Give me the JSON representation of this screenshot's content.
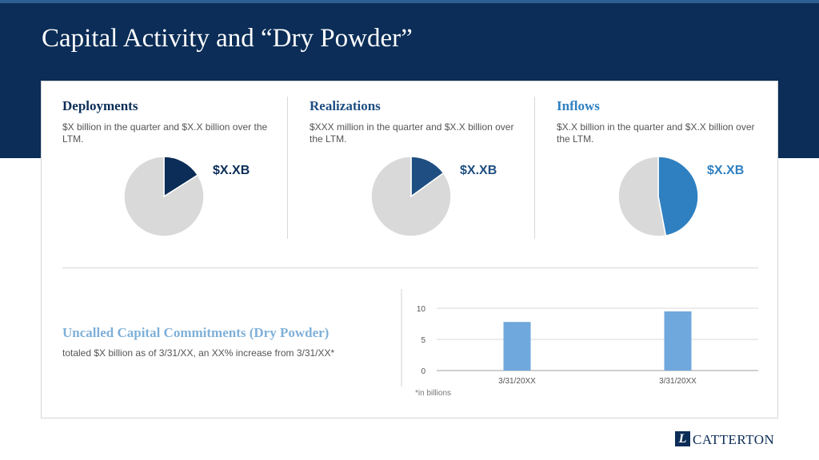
{
  "slide": {
    "title": "Capital Activity and “Dry Powder”",
    "colors": {
      "header_bg": "#0b2d57",
      "light_blue_title": "#7fb0d8",
      "pie_remainder": "#d9d9d9"
    }
  },
  "panels": [
    {
      "heading": "Deployments",
      "text": "$X billion in the quarter and $X.X billion over the LTM.",
      "value": "$X.XB",
      "color": "#0b2d57"
    },
    {
      "heading": "Realizations",
      "text": "$XXX million in the quarter and $X.X billion over the LTM.",
      "value": "$X.XB",
      "color": "#1f4e82"
    },
    {
      "heading": "Inflows",
      "text": "$X.X billion in the quarter and $X.X billion over the LTM.",
      "value": "$X.XB",
      "color": "#2f80c1"
    }
  ],
  "dry_powder": {
    "title": "Uncalled Capital Commitments (Dry Powder)",
    "text": "totaled $X billion as of 3/31/XX, an XX% increase from 3/31/XX*",
    "note": "*in billions"
  },
  "logo": {
    "mark": "L",
    "text": "CATTERTON"
  },
  "chart_data": [
    {
      "type": "pie",
      "slices": [
        {
          "value": 16,
          "color": "#0b2d57"
        },
        {
          "value": 84,
          "color": "#d9d9d9"
        }
      ]
    },
    {
      "type": "pie",
      "slices": [
        {
          "value": 15,
          "color": "#1f4e82"
        },
        {
          "value": 85,
          "color": "#d9d9d9"
        }
      ]
    },
    {
      "type": "pie",
      "slices": [
        {
          "value": 47,
          "color": "#2f80c1"
        },
        {
          "value": 53,
          "color": "#d9d9d9"
        }
      ]
    },
    {
      "type": "bar",
      "categories": [
        "3/31/20XX",
        "3/31/20XX"
      ],
      "values": [
        7.8,
        9.5
      ],
      "ylim": [
        0,
        10
      ],
      "yticks": [
        0,
        5,
        10
      ],
      "grid": true,
      "bar_color": "#6fa8dc"
    }
  ]
}
